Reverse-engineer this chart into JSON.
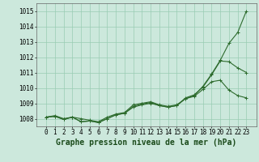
{
  "x": [
    0,
    1,
    2,
    3,
    4,
    5,
    6,
    7,
    8,
    9,
    10,
    11,
    12,
    13,
    14,
    15,
    16,
    17,
    18,
    19,
    20,
    21,
    22,
    23
  ],
  "line1": [
    1008.1,
    1008.2,
    1008.0,
    1008.1,
    1008.0,
    1007.9,
    1007.8,
    1008.1,
    1008.3,
    1008.4,
    1008.9,
    1009.0,
    1009.1,
    1008.9,
    1008.8,
    1008.9,
    1009.3,
    1009.5,
    1010.1,
    1010.9,
    1011.8,
    1012.9,
    1013.6,
    1015.0
  ],
  "line2": [
    1008.1,
    1008.15,
    1007.95,
    1008.1,
    1007.8,
    1007.85,
    1007.75,
    1008.0,
    1008.25,
    1008.35,
    1008.8,
    1008.95,
    1009.05,
    1008.85,
    1008.75,
    1008.85,
    1009.35,
    1009.55,
    1010.05,
    1010.85,
    1011.75,
    1011.7,
    1011.3,
    1011.0
  ],
  "line3": [
    1008.1,
    1008.15,
    1007.95,
    1008.1,
    1007.8,
    1007.85,
    1007.75,
    1008.0,
    1008.25,
    1008.35,
    1008.75,
    1008.9,
    1009.0,
    1008.85,
    1008.75,
    1008.85,
    1009.3,
    1009.45,
    1009.9,
    1010.4,
    1010.5,
    1009.85,
    1009.5,
    1009.35
  ],
  "bg_color": "#cce8dc",
  "grid_color": "#99ccb3",
  "line_color": "#2d6b2d",
  "marker": "+",
  "marker_size": 3,
  "linewidth": 0.8,
  "title": "Graphe pression niveau de la mer (hPa)",
  "ylim": [
    1007.5,
    1015.5
  ],
  "yticks": [
    1008,
    1009,
    1010,
    1011,
    1012,
    1013,
    1014,
    1015
  ],
  "xtick_labels": [
    "0",
    "1",
    "2",
    "3",
    "4",
    "5",
    "6",
    "7",
    "8",
    "9",
    "10",
    "11",
    "12",
    "13",
    "14",
    "15",
    "16",
    "17",
    "18",
    "19",
    "20",
    "21",
    "22",
    "23"
  ],
  "title_fontsize": 7,
  "tick_fontsize": 5.5
}
